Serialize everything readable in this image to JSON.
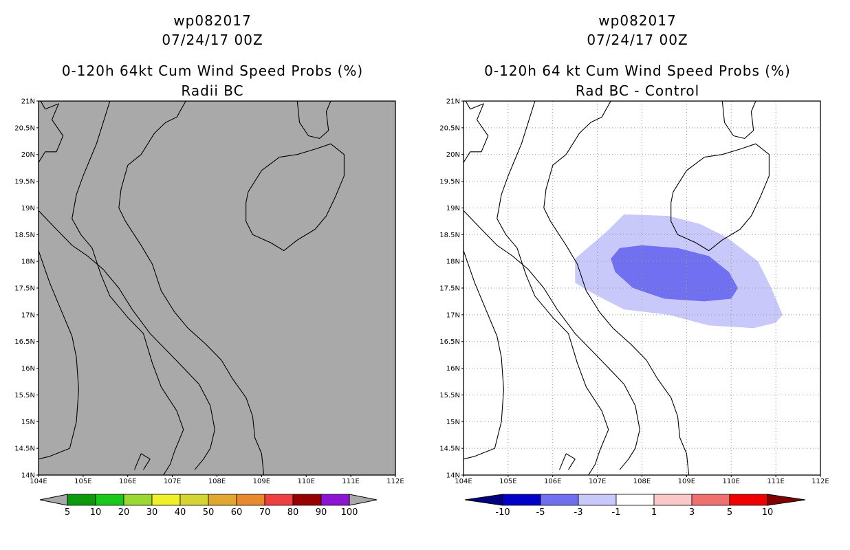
{
  "panels": [
    {
      "header_line1": "wp082017",
      "header_line2": "07/24/17 00Z",
      "title": "0-120h 64kt Cum Wind Speed Probs (%)",
      "subtitle": "Radii BC",
      "background_color": "#a9a9a9",
      "grid": false,
      "colorbar": {
        "labels": [
          "5",
          "10",
          "20",
          "30",
          "40",
          "50",
          "60",
          "70",
          "80",
          "90",
          "100"
        ],
        "colors": [
          "#0c9a0c",
          "#19c819",
          "#9bd834",
          "#f0f028",
          "#d4d432",
          "#e0a830",
          "#e88a2c",
          "#ee4040",
          "#960000",
          "#8c14d2"
        ],
        "end_color": "#a9a9a9"
      }
    },
    {
      "header_line1": "wp082017",
      "header_line2": "07/24/17 00Z",
      "title": "0-120h 64 kt Cum Wind Speed Probs (%)",
      "subtitle": "Rad BC - Control",
      "background_color": "#ffffff",
      "grid": true,
      "colorbar": {
        "labels": [
          "-10",
          "-5",
          "-3",
          "-1",
          "1",
          "3",
          "5",
          "10"
        ],
        "colors": [
          "#0000c8",
          "#7070f0",
          "#c8c8fa",
          "#ffffff",
          "#fac8c8",
          "#f07070",
          "#f00000"
        ],
        "start_color": "#000080",
        "end_color": "#800000"
      },
      "contours": [
        {
          "level": "-3 to -1",
          "color": "#c8c8fa",
          "lonlat": [
            [
              106.5,
              17.6
            ],
            [
              106.5,
              18.05
            ],
            [
              107.2,
              18.55
            ],
            [
              107.6,
              18.88
            ],
            [
              108.6,
              18.85
            ],
            [
              109.3,
              18.7
            ],
            [
              109.9,
              18.45
            ],
            [
              110.6,
              18.0
            ],
            [
              110.9,
              17.5
            ],
            [
              111.15,
              17.0
            ],
            [
              111.0,
              16.85
            ],
            [
              110.5,
              16.75
            ],
            [
              109.5,
              16.8
            ],
            [
              108.6,
              17.0
            ],
            [
              107.6,
              17.1
            ],
            [
              106.9,
              17.4
            ]
          ]
        },
        {
          "level": "-5 to -3",
          "color": "#7070f0",
          "lonlat": [
            [
              107.3,
              18.05
            ],
            [
              107.5,
              18.25
            ],
            [
              108.0,
              18.3
            ],
            [
              108.8,
              18.25
            ],
            [
              109.5,
              18.1
            ],
            [
              109.95,
              17.8
            ],
            [
              110.15,
              17.5
            ],
            [
              110.0,
              17.3
            ],
            [
              109.4,
              17.25
            ],
            [
              108.5,
              17.3
            ],
            [
              107.8,
              17.5
            ],
            [
              107.4,
              17.8
            ]
          ]
        }
      ]
    }
  ],
  "map": {
    "lon_range": [
      104,
      112
    ],
    "lat_range": [
      14,
      21
    ],
    "lon_ticks": [
      "104E",
      "105E",
      "106E",
      "107E",
      "108E",
      "109E",
      "110E",
      "111E",
      "112E"
    ],
    "lat_ticks": [
      "14N",
      "14.5N",
      "15N",
      "15.5N",
      "16N",
      "16.5N",
      "17N",
      "17.5N",
      "18N",
      "18.5N",
      "19N",
      "19.5N",
      "20N",
      "20.5N",
      "21N"
    ],
    "coastlines": [
      [
        [
          104.0,
          19.85
        ],
        [
          104.15,
          20.05
        ],
        [
          104.4,
          20.05
        ],
        [
          104.55,
          20.35
        ],
        [
          104.3,
          20.65
        ],
        [
          104.45,
          20.95
        ],
        [
          104.15,
          20.85
        ],
        [
          104.05,
          21.0
        ]
      ],
      [
        [
          105.6,
          21.0
        ],
        [
          105.45,
          20.6
        ],
        [
          105.3,
          20.2
        ],
        [
          105.15,
          19.9
        ],
        [
          105.0,
          19.6
        ],
        [
          104.85,
          19.25
        ],
        [
          104.75,
          18.8
        ],
        [
          104.95,
          18.5
        ],
        [
          105.2,
          18.25
        ],
        [
          105.4,
          17.75
        ],
        [
          105.6,
          17.35
        ],
        [
          106.0,
          16.95
        ],
        [
          106.35,
          16.65
        ],
        [
          106.55,
          16.1
        ],
        [
          106.75,
          15.65
        ],
        [
          107.1,
          15.2
        ],
        [
          107.25,
          14.85
        ],
        [
          107.05,
          14.45
        ],
        [
          106.95,
          14.2
        ],
        [
          106.8,
          14.0
        ]
      ],
      [
        [
          104.0,
          18.95
        ],
        [
          104.4,
          18.6
        ],
        [
          104.75,
          18.3
        ],
        [
          105.1,
          18.1
        ],
        [
          105.45,
          17.85
        ],
        [
          105.8,
          17.5
        ],
        [
          106.1,
          17.1
        ],
        [
          106.5,
          16.65
        ],
        [
          106.85,
          16.35
        ],
        [
          107.2,
          16.05
        ],
        [
          107.6,
          15.7
        ],
        [
          107.85,
          15.3
        ],
        [
          107.95,
          14.85
        ],
        [
          107.85,
          14.5
        ],
        [
          107.7,
          14.3
        ],
        [
          107.5,
          14.1
        ]
      ],
      [
        [
          104.0,
          18.2
        ],
        [
          104.25,
          17.6
        ],
        [
          104.5,
          17.1
        ],
        [
          104.75,
          16.6
        ],
        [
          104.85,
          16.2
        ],
        [
          104.9,
          15.6
        ],
        [
          104.85,
          15.0
        ],
        [
          104.7,
          14.5
        ],
        [
          104.25,
          14.35
        ],
        [
          104.0,
          14.3
        ]
      ],
      [
        [
          106.35,
          14.1
        ],
        [
          106.5,
          14.3
        ],
        [
          106.3,
          14.4
        ],
        [
          106.15,
          14.1
        ]
      ],
      [
        [
          107.3,
          21.0
        ],
        [
          107.1,
          20.7
        ],
        [
          106.85,
          20.6
        ],
        [
          106.6,
          20.4
        ],
        [
          106.3,
          20.0
        ],
        [
          106.0,
          19.8
        ],
        [
          105.85,
          19.35
        ],
        [
          105.8,
          19.0
        ],
        [
          105.95,
          18.75
        ],
        [
          106.3,
          18.3
        ],
        [
          106.55,
          17.95
        ],
        [
          106.75,
          17.45
        ],
        [
          107.05,
          17.05
        ],
        [
          107.35,
          16.75
        ],
        [
          107.75,
          16.45
        ],
        [
          108.1,
          16.15
        ],
        [
          108.35,
          15.8
        ],
        [
          108.65,
          15.45
        ],
        [
          108.8,
          15.1
        ],
        [
          108.85,
          14.7
        ],
        [
          109.0,
          14.4
        ],
        [
          109.05,
          14.0
        ]
      ],
      [
        [
          108.7,
          19.3
        ],
        [
          109.0,
          19.7
        ],
        [
          109.4,
          19.95
        ],
        [
          109.8,
          20.0
        ],
        [
          110.2,
          20.1
        ],
        [
          110.55,
          20.2
        ],
        [
          110.85,
          20.0
        ],
        [
          110.85,
          19.6
        ],
        [
          110.65,
          19.2
        ],
        [
          110.45,
          18.85
        ],
        [
          110.2,
          18.6
        ],
        [
          109.8,
          18.4
        ],
        [
          109.5,
          18.2
        ],
        [
          109.2,
          18.35
        ],
        [
          108.8,
          18.5
        ],
        [
          108.65,
          18.75
        ],
        [
          108.65,
          19.1
        ],
        [
          108.7,
          19.3
        ]
      ],
      [
        [
          109.8,
          21.0
        ],
        [
          109.85,
          20.6
        ],
        [
          110.05,
          20.35
        ],
        [
          110.3,
          20.3
        ],
        [
          110.5,
          20.45
        ],
        [
          110.45,
          20.8
        ],
        [
          110.55,
          21.0
        ]
      ]
    ]
  }
}
